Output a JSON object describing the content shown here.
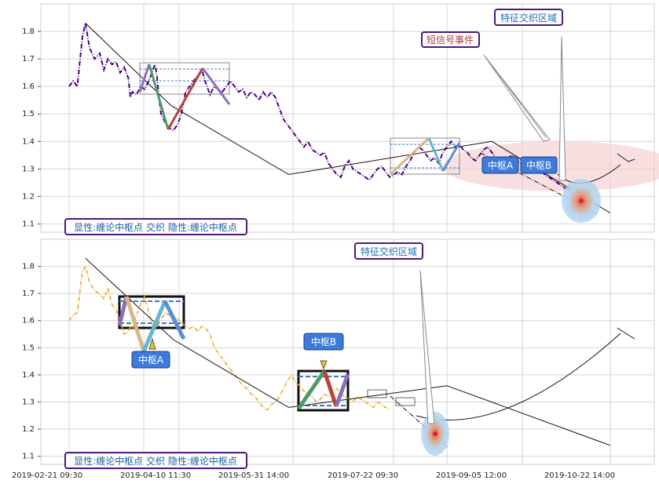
{
  "chart_data": [
    {
      "type": "line",
      "panel": "top",
      "ylim": [
        1.07,
        1.9
      ],
      "yticks": [
        "1.1",
        "1.2",
        "1.3",
        "1.4",
        "1.5",
        "1.6",
        "1.7",
        "1.8"
      ],
      "grid": true,
      "series": [
        {
          "style": "purple dash-dot",
          "x": [
            0,
            0.4,
            0.8,
            1.3,
            1.6,
            2.0,
            2.5,
            3.0,
            3.4,
            3.8,
            4.2,
            4.6,
            5.0,
            5.4,
            5.8,
            6.0,
            6.2,
            6.6,
            7.0,
            7.4,
            7.8,
            8.2,
            8.4,
            8.6,
            8.8,
            9.0,
            9.4,
            9.8,
            10.2,
            10.6,
            11.0,
            11.4,
            11.8,
            12.2,
            12.6,
            13.0,
            13.4,
            13.8,
            14.2,
            14.6,
            15.0,
            15.4,
            15.8,
            16.2,
            16.6,
            17.0,
            17.4,
            17.8,
            18.2,
            18.6,
            19.0,
            19.4,
            19.8,
            20.2,
            20.6,
            21.0,
            21.4,
            21.8,
            22.2,
            22.6,
            23.0,
            23.4,
            23.8,
            24.2,
            24.6,
            25.0,
            25.4,
            25.8,
            26.2,
            26.6,
            27.0,
            27.4,
            27.8,
            28.2,
            28.6,
            29.0,
            29.4,
            29.8,
            30.2,
            30.6,
            31.0,
            31.4,
            31.8,
            32.2,
            32.6,
            33.0,
            33.4,
            33.8,
            34.2,
            34.6,
            35.0,
            35.4,
            35.8,
            36.2,
            36.6,
            37.0,
            37.4,
            37.8,
            38.2,
            38.6,
            39.0,
            39.4,
            39.8,
            40.2,
            40.6,
            41.0,
            41.4,
            41.8,
            42.2,
            42.6,
            43.0,
            43.4,
            43.8,
            44.2,
            44.6,
            45.0,
            45.4,
            45.8,
            46.2,
            46.6,
            47.0,
            47.4,
            47.8,
            48.2,
            48.6,
            49.0,
            49.4,
            49.8,
            50.2,
            50.6,
            51.0,
            51.4
          ],
          "y": [
            1.6,
            1.62,
            1.6,
            1.78,
            1.83,
            1.74,
            1.7,
            1.72,
            1.66,
            1.7,
            1.68,
            1.69,
            1.65,
            1.67,
            1.63,
            1.56,
            1.58,
            1.57,
            1.6,
            1.59,
            1.62,
            1.66,
            1.68,
            1.64,
            1.56,
            1.5,
            1.47,
            1.45,
            1.44,
            1.46,
            1.5,
            1.58,
            1.6,
            1.62,
            1.64,
            1.66,
            1.61,
            1.57,
            1.6,
            1.59,
            1.58,
            1.6,
            1.62,
            1.6,
            1.58,
            1.59,
            1.56,
            1.58,
            1.57,
            1.55,
            1.58,
            1.56,
            1.58,
            1.56,
            1.52,
            1.48,
            1.46,
            1.44,
            1.42,
            1.4,
            1.38,
            1.4,
            1.37,
            1.36,
            1.35,
            1.36,
            1.32,
            1.3,
            1.28,
            1.27,
            1.31,
            1.33,
            1.3,
            1.29,
            1.28,
            1.27,
            1.26,
            1.28,
            1.3,
            1.31,
            1.29,
            1.27,
            1.28,
            1.29,
            1.28,
            1.31,
            1.33,
            1.36,
            1.38,
            1.37,
            1.35,
            1.33,
            1.34,
            1.32,
            1.36,
            1.38,
            1.4,
            1.38,
            1.39,
            1.37,
            1.36,
            1.34,
            1.33,
            1.35,
            1.37,
            1.38,
            1.36,
            1.34,
            1.33,
            1.32,
            1.34,
            1.35,
            1.33,
            1.32,
            1.31,
            1.33,
            1.34,
            1.3,
            1.29,
            1.28,
            1.27,
            1.26,
            1.25,
            1.24,
            1.23,
            1.22,
            1.2,
            1.19,
            1.18,
            1.16,
            1.15,
            1.14
          ]
        },
        {
          "style": "black trend",
          "x": [
            1.6,
            10,
            21.5,
            41.4,
            53
          ],
          "y": [
            1.83,
            1.53,
            1.28,
            1.4,
            1.14
          ]
        }
      ],
      "annotations": {
        "label_top": "显性:缠论中枢点 交织 隐性:缠论中枢点",
        "short_signal": "短信号事件",
        "feature_zone": "特征交织区域",
        "zs_a": "中枢A",
        "zs_b": "中枢B"
      }
    },
    {
      "type": "line",
      "panel": "bottom",
      "ylim": [
        1.07,
        1.9
      ],
      "yticks": [
        "1.1",
        "1.2",
        "1.3",
        "1.4",
        "1.5",
        "1.6",
        "1.7",
        "1.8"
      ],
      "grid": true,
      "series": [
        {
          "style": "orange dash-dot",
          "x": [
            0,
            0.4,
            0.8,
            1.3,
            1.6,
            2.0,
            2.5,
            3.0,
            3.4,
            3.8,
            4.2,
            4.6,
            5.0,
            5.4,
            5.8,
            6.0,
            6.2,
            6.6,
            7.0,
            7.4,
            7.8,
            8.2,
            8.6,
            9.0,
            9.4,
            9.8,
            10.2,
            10.6,
            11.0,
            11.4,
            11.8,
            12.2,
            12.6,
            13.0,
            13.4,
            13.8,
            14.2,
            14.6,
            15.0,
            15.4,
            15.8,
            16.2,
            16.6,
            17.0,
            17.4,
            17.8,
            18.2,
            18.6,
            19.0,
            19.4,
            19.8,
            20.2,
            20.6,
            21.0,
            21.4,
            21.8,
            22.2,
            22.6,
            23.0,
            23.4,
            23.8,
            24.2,
            24.6,
            25.0,
            25.4,
            25.8,
            26.2,
            26.6,
            27.0,
            27.4,
            27.8,
            28.2,
            28.6,
            29.0,
            29.4,
            29.8,
            30.2,
            30.6,
            31.0,
            31.4
          ],
          "y": [
            1.6,
            1.62,
            1.63,
            1.78,
            1.8,
            1.74,
            1.71,
            1.7,
            1.68,
            1.72,
            1.66,
            1.64,
            1.6,
            1.55,
            1.56,
            1.58,
            1.57,
            1.62,
            1.66,
            1.69,
            1.63,
            1.58,
            1.59,
            1.6,
            1.63,
            1.62,
            1.6,
            1.61,
            1.59,
            1.58,
            1.57,
            1.58,
            1.56,
            1.58,
            1.57,
            1.55,
            1.5,
            1.48,
            1.46,
            1.44,
            1.42,
            1.4,
            1.38,
            1.36,
            1.35,
            1.33,
            1.32,
            1.3,
            1.28,
            1.27,
            1.29,
            1.3,
            1.32,
            1.35,
            1.38,
            1.4,
            1.37,
            1.36,
            1.34,
            1.33,
            1.32,
            1.3,
            1.31,
            1.33,
            1.32,
            1.34,
            1.35,
            1.33,
            1.32,
            1.31,
            1.3,
            1.32,
            1.31,
            1.3,
            1.29,
            1.28,
            1.3,
            1.29,
            1.28,
            1.27
          ]
        },
        {
          "style": "black trend",
          "x": [
            1.6,
            10.2,
            21.5,
            37,
            53
          ],
          "y": [
            1.83,
            1.53,
            1.28,
            1.36,
            1.14
          ]
        }
      ],
      "annotations": {
        "label_bottom": "显性:缠论中枢点 交织 隐性:缠论中枢点",
        "feature_zone": "特征交织区域",
        "zs_a": "中枢A",
        "zs_b": "中枢B"
      }
    }
  ],
  "x_axis_labels": [
    "2019-02-21 09:30",
    "2019-04-10 11:30",
    "2019-05-31 14:00",
    "2019-07-22 09:30",
    "2019-09-05 12:00",
    "2019-10-22 14:00"
  ],
  "colors": {
    "purple": "#4b0082",
    "orange": "#e8a21a",
    "label_blue": "#1a5fa8",
    "box_border": "#3b1d6e",
    "zs_fill": "#3d7ad9"
  }
}
